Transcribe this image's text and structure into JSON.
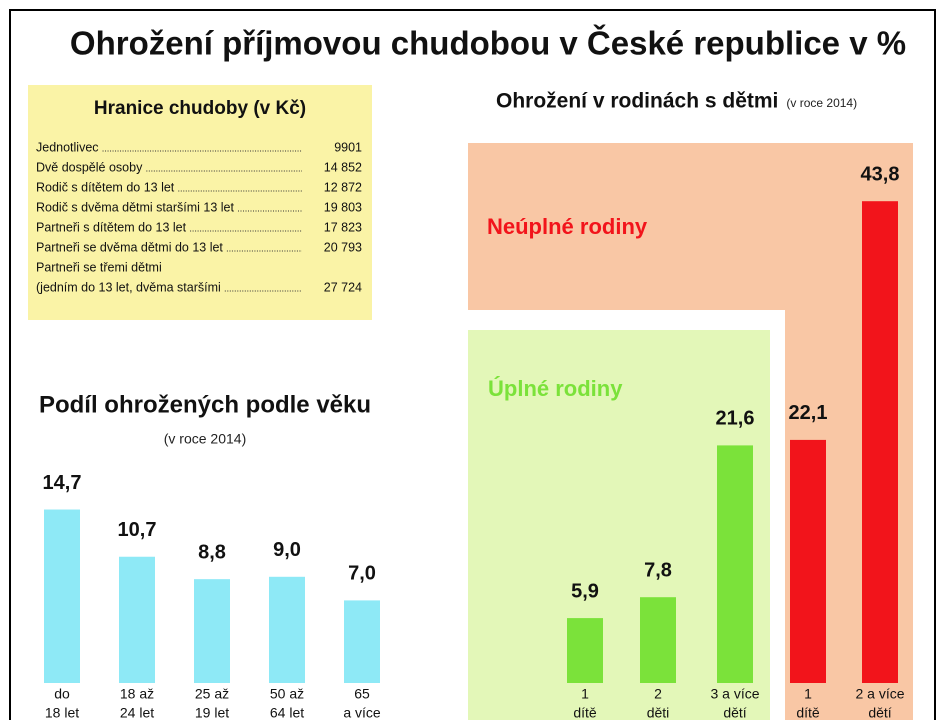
{
  "title": "Ohrožení příjmovou chudobou v České republice v %",
  "thresholds": {
    "title": "Hranice chudoby (v Kč)",
    "rows": [
      {
        "label": "Jednotlivec",
        "value": "9901"
      },
      {
        "label": "Dvě dospělé osoby",
        "value": "14 852"
      },
      {
        "label": "Rodič s dítětem do 13 let",
        "value": "12 872"
      },
      {
        "label": "Rodič s dvěma dětmi staršími 13 let",
        "value": "19 803"
      },
      {
        "label": "Partneři s dítětem do 13 let",
        "value": "17 823"
      },
      {
        "label": "Partneři se dvěma dětmi do 13 let",
        "value": "20 793"
      },
      {
        "label": "Partneři se třemi dětmi",
        "label2": "(jedním do 13 let, dvěma staršími",
        "value": "27 724"
      }
    ]
  },
  "chart_data": [
    {
      "type": "bar",
      "title": "Podíl ohrožených podle věku",
      "subtitle": "(v roce 2014)",
      "color": "#8ee9f6",
      "categories": [
        [
          "do",
          "18 let"
        ],
        [
          "18 až",
          "24 let"
        ],
        [
          "25 až",
          "19 let"
        ],
        [
          "50 až",
          "64 let"
        ],
        [
          "65",
          "a více"
        ]
      ],
      "values": [
        14.7,
        10.7,
        8.8,
        9.0,
        7.0
      ],
      "value_labels": [
        "14,7",
        "10,7",
        "8,8",
        "9,0",
        "7,0"
      ]
    },
    {
      "type": "bar",
      "title": "Ohrožení v rodinách s dětmi",
      "subtitle": "(v roce 2014)",
      "series": [
        {
          "name": "Úplné rodiny",
          "color": "#7be23a",
          "panel_color": "#e3f7b8",
          "categories": [
            [
              "1",
              "dítě"
            ],
            [
              "2",
              "děti"
            ],
            [
              "3 a více",
              "dětí"
            ]
          ],
          "values": [
            5.9,
            7.8,
            21.6
          ],
          "value_labels": [
            "5,9",
            "7,8",
            "21,6"
          ]
        },
        {
          "name": "Neúplné rodiny",
          "color": "#f2141b",
          "panel_color": "#f9c7a5",
          "categories": [
            [
              "1",
              "dítě"
            ],
            [
              "2 a více",
              "dětí"
            ]
          ],
          "values": [
            22.1,
            43.8
          ],
          "value_labels": [
            "22,1",
            "43,8"
          ]
        }
      ]
    }
  ]
}
